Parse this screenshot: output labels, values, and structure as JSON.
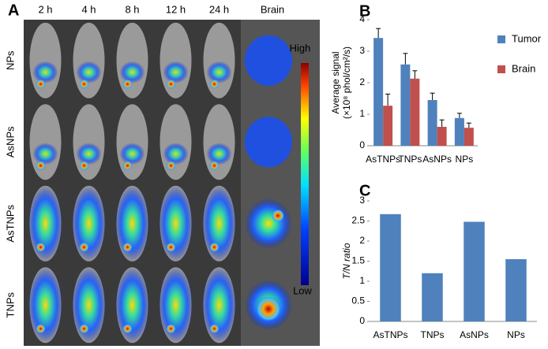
{
  "panel_a": {
    "label": "A",
    "columns": [
      "2 h",
      "4 h",
      "8 h",
      "12 h",
      "24 h",
      "Brain"
    ],
    "rows": [
      "NPs",
      "AsNPs",
      "AsTNPs",
      "TNPs"
    ],
    "colorbar_high": "High",
    "colorbar_low": "Low"
  },
  "chart_data": [
    {
      "type": "bar",
      "panel_label": "B",
      "ylabel": [
        "Average signal",
        "(×10⁸ phol/cm²/s)"
      ],
      "categories": [
        "AsTNPs",
        "TNPs",
        "AsNPs",
        "NPs"
      ],
      "series": [
        {
          "name": "Tumor",
          "color": "#4f81bd",
          "values": [
            3.42,
            2.58,
            1.45,
            0.88
          ],
          "errors": [
            0.3,
            0.35,
            0.22,
            0.15
          ]
        },
        {
          "name": "Brain",
          "color": "#c0504d",
          "values": [
            1.27,
            2.13,
            0.6,
            0.57
          ],
          "errors": [
            0.37,
            0.25,
            0.22,
            0.15
          ]
        }
      ],
      "ylim": [
        0,
        4
      ],
      "yticks": [
        0,
        1,
        2,
        3,
        4
      ],
      "legend": "right"
    },
    {
      "type": "bar",
      "panel_label": "C",
      "ylabel": [
        "T/N ratio"
      ],
      "categories": [
        "AsTNPs",
        "TNPs",
        "AsNPs",
        "NPs"
      ],
      "values": [
        2.67,
        1.2,
        2.48,
        1.55
      ],
      "color": "#4f81bd",
      "ylim": [
        0,
        3
      ],
      "yticks": [
        0,
        0.5,
        1,
        1.5,
        2,
        2.5,
        3
      ]
    }
  ]
}
